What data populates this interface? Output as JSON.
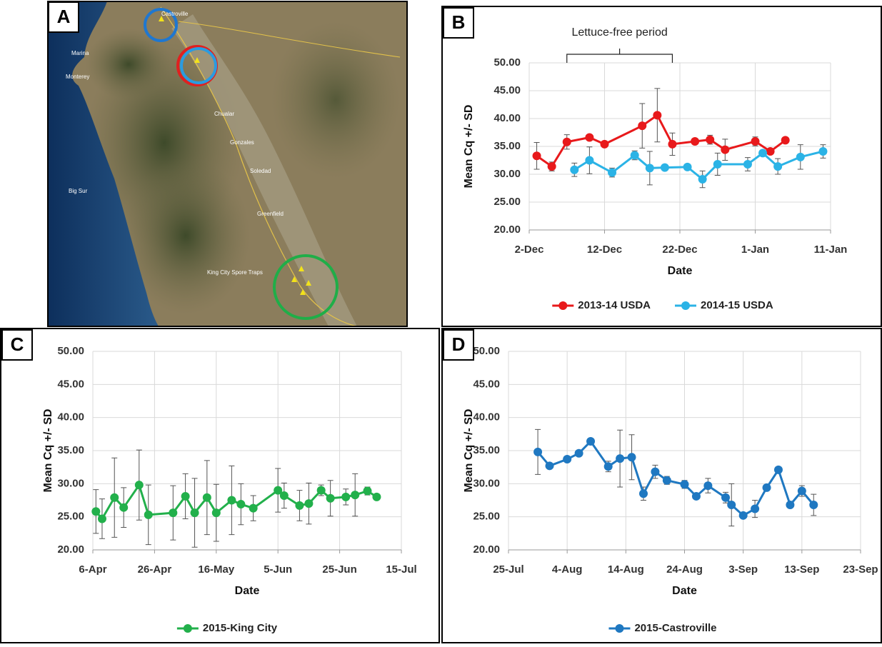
{
  "map": {
    "panel": "A",
    "labels": [
      "Castroville",
      "Marina",
      "Monterey",
      "Chualar",
      "Gonzales",
      "Soledad",
      "Greenfield",
      "Big Sur",
      "King City Spore Traps"
    ]
  },
  "chart_data": [
    {
      "type": "line",
      "panel": "B",
      "xlabel": "Date",
      "ylabel": "Mean Cq +/- SD",
      "xlim": [
        "2-Dec",
        "11-Jan"
      ],
      "xticks": [
        "2-Dec",
        "12-Dec",
        "22-Dec",
        "1-Jan",
        "11-Jan"
      ],
      "ylim": [
        20,
        50
      ],
      "yticks": [
        {
          "value": 20,
          "label": "20.00"
        },
        {
          "value": 25,
          "label": "25.00"
        },
        {
          "value": 30,
          "label": "30.00"
        },
        {
          "value": 35,
          "label": "35.00"
        },
        {
          "value": 40,
          "label": "40.00"
        },
        {
          "value": 45,
          "label": "45.00"
        },
        {
          "value": 50,
          "label": "50.00"
        }
      ],
      "grid": true,
      "legend": "bottom",
      "annotation": {
        "text": "Lettuce-free period",
        "start": "7-Dec",
        "end": "21-Dec"
      },
      "series": [
        {
          "name": "2013-14 USDA",
          "color": "#e8191b",
          "x": [
            "3-Dec",
            "5-Dec",
            "7-Dec",
            "10-Dec",
            "12-Dec",
            "17-Dec",
            "19-Dec",
            "21-Dec",
            "24-Dec",
            "26-Dec",
            "28-Dec",
            "1-Jan",
            "3-Jan",
            "5-Jan"
          ],
          "values": [
            33.3,
            31.4,
            35.8,
            36.6,
            35.4,
            38.7,
            40.6,
            35.4,
            35.9,
            36.2,
            34.4,
            35.9,
            34.1,
            36.1
          ],
          "errors": [
            2.4,
            0.8,
            1.3,
            0.3,
            0.5,
            4.0,
            4.8,
            2.0,
            0.3,
            0.8,
            1.9,
            0.8,
            0.3,
            0.3
          ]
        },
        {
          "name": "2014-15 USDA",
          "color": "#2bb3e6",
          "x": [
            "8-Dec",
            "10-Dec",
            "13-Dec",
            "16-Dec",
            "18-Dec",
            "20-Dec",
            "23-Dec",
            "25-Dec",
            "27-Dec",
            "31-Dec",
            "2-Jan",
            "4-Jan",
            "7-Jan",
            "10-Jan"
          ],
          "values": [
            30.8,
            32.5,
            30.3,
            33.4,
            31.1,
            31.2,
            31.3,
            29.1,
            31.8,
            31.8,
            33.8,
            31.4,
            33.1,
            34.1
          ],
          "errors": [
            1.2,
            2.4,
            0.8,
            0.8,
            3.0,
            0.3,
            0.5,
            1.5,
            2.0,
            1.2,
            0.5,
            1.4,
            2.2,
            1.2
          ]
        }
      ]
    },
    {
      "type": "line",
      "panel": "C",
      "xlabel": "Date",
      "ylabel": "Mean Cq +/- SD",
      "xlim": [
        "6-Apr",
        "15-Jul"
      ],
      "xticks": [
        "6-Apr",
        "26-Apr",
        "16-May",
        "5-Jun",
        "25-Jun",
        "15-Jul"
      ],
      "ylim": [
        20,
        50
      ],
      "yticks": [
        {
          "value": 20,
          "label": "20.00"
        },
        {
          "value": 25,
          "label": "25.00"
        },
        {
          "value": 30,
          "label": "30.00"
        },
        {
          "value": 35,
          "label": "35.00"
        },
        {
          "value": 40,
          "label": "40.00"
        },
        {
          "value": 45,
          "label": "45.00"
        },
        {
          "value": 50,
          "label": "50.00"
        }
      ],
      "grid": true,
      "legend": "bottom",
      "series": [
        {
          "name": "2015-King City",
          "color": "#22b04b",
          "x": [
            "7-Apr",
            "9-Apr",
            "13-Apr",
            "16-Apr",
            "21-Apr",
            "24-Apr",
            "2-May",
            "6-May",
            "9-May",
            "13-May",
            "16-May",
            "21-May",
            "24-May",
            "28-May",
            "5-Jun",
            "7-Jun",
            "12-Jun",
            "15-Jun",
            "19-Jun",
            "22-Jun",
            "27-Jun",
            "30-Jun",
            "4-Jul",
            "7-Jul"
          ],
          "values": [
            25.8,
            24.7,
            27.9,
            26.4,
            29.8,
            25.3,
            25.6,
            28.1,
            25.6,
            27.9,
            25.6,
            27.5,
            26.9,
            26.3,
            29.0,
            28.2,
            26.7,
            27.0,
            29.0,
            27.8,
            28.0,
            28.3,
            28.9,
            28.0
          ],
          "errors": [
            3.3,
            3.0,
            6.0,
            3.0,
            5.3,
            4.5,
            4.1,
            3.4,
            5.2,
            5.6,
            4.3,
            5.2,
            3.1,
            1.9,
            3.3,
            1.9,
            2.3,
            3.1,
            0.8,
            2.7,
            1.2,
            3.2,
            0.6,
            0.3
          ]
        }
      ]
    },
    {
      "type": "line",
      "panel": "D",
      "xlabel": "Date",
      "ylabel": "Mean Cq +/- SD",
      "xlim": [
        "25-Jul",
        "23-Sep"
      ],
      "xticks": [
        "25-Jul",
        "4-Aug",
        "14-Aug",
        "24-Aug",
        "3-Sep",
        "13-Sep",
        "23-Sep"
      ],
      "ylim": [
        20,
        50
      ],
      "yticks": [
        {
          "value": 20,
          "label": "20.00"
        },
        {
          "value": 25,
          "label": "25.00"
        },
        {
          "value": 30,
          "label": "30.00"
        },
        {
          "value": 35,
          "label": "35.00"
        },
        {
          "value": 40,
          "label": "40.00"
        },
        {
          "value": 45,
          "label": "45.00"
        },
        {
          "value": 50,
          "label": "50.00"
        }
      ],
      "grid": true,
      "legend": "bottom",
      "series": [
        {
          "name": "2015-Castroville",
          "color": "#1f78c1",
          "x": [
            "30-Jul",
            "1-Aug",
            "4-Aug",
            "6-Aug",
            "8-Aug",
            "11-Aug",
            "13-Aug",
            "15-Aug",
            "17-Aug",
            "19-Aug",
            "21-Aug",
            "24-Aug",
            "26-Aug",
            "28-Aug",
            "31-Aug",
            "1-Sep",
            "3-Sep",
            "5-Sep",
            "7-Sep",
            "9-Sep",
            "11-Sep",
            "13-Sep",
            "15-Sep"
          ],
          "values": [
            34.8,
            32.7,
            33.7,
            34.6,
            36.4,
            32.6,
            33.8,
            34.0,
            28.5,
            31.8,
            30.5,
            29.9,
            28.1,
            29.7,
            27.9,
            26.8,
            25.2,
            26.2,
            29.4,
            32.1,
            26.8,
            28.9,
            26.8
          ],
          "errors": [
            3.4,
            0.3,
            0.3,
            0.3,
            0.3,
            0.8,
            4.3,
            3.4,
            1.0,
            1.0,
            0.6,
            0.6,
            0.3,
            1.1,
            0.8,
            3.2,
            0.3,
            1.3,
            0.3,
            0.3,
            0.3,
            0.8,
            1.6
          ]
        }
      ]
    }
  ]
}
